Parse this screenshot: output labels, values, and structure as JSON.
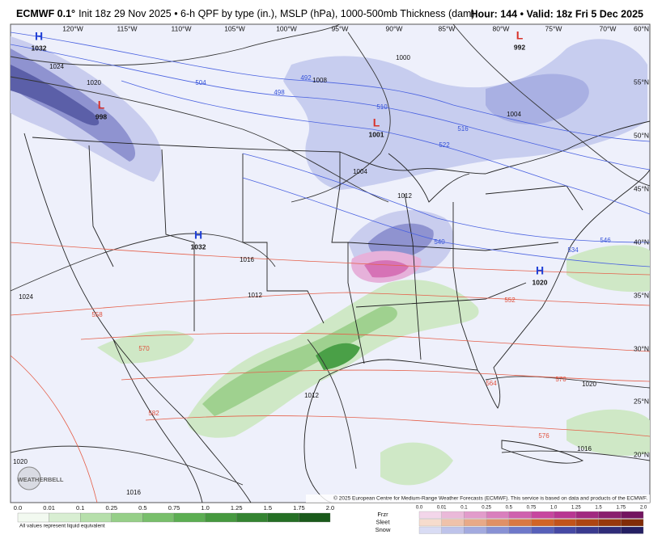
{
  "header": {
    "model": "ECMWF 0.1°",
    "description": "Init 18z 29 Nov 2025 • 6-h QPF by type (in.), MSLP (hPa), 1000-500mb Thickness (dam)",
    "valid": "Hour: 144 • Valid: 18z Fri 5 Dec 2025"
  },
  "map": {
    "longitudes": [
      "120°W",
      "115°W",
      "110°W",
      "105°W",
      "100°W",
      "95°W",
      "90°W",
      "85°W",
      "80°W",
      "75°W",
      "70°W"
    ],
    "latitudes": [
      "60°N",
      "55°N",
      "50°N",
      "45°N",
      "40°N",
      "35°N",
      "30°N",
      "25°N",
      "20°N"
    ],
    "pressure_centers": [
      {
        "symbol": "H",
        "value": "1032"
      },
      {
        "symbol": "L",
        "value": "998"
      },
      {
        "symbol": "L",
        "value": "1001"
      },
      {
        "symbol": "L",
        "value": "992"
      },
      {
        "symbol": "H",
        "value": "1032"
      },
      {
        "symbol": "H",
        "value": "1020"
      }
    ],
    "isobar_labels": [
      "1024",
      "1020",
      "1008",
      "1004",
      "1012",
      "1000",
      "1004",
      "1016",
      "1012",
      "1024",
      "1020",
      "1016",
      "1020",
      "1016",
      "1012"
    ],
    "thickness_labels": [
      "504",
      "492",
      "498",
      "510",
      "516",
      "522",
      "540",
      "546",
      "534",
      "552",
      "564",
      "570",
      "576",
      "558",
      "570",
      "582"
    ],
    "credit": "© 2025 European Centre for Medium-Range Weather Forecasts (ECMWF). This service is based on data and products of the ECMWF.",
    "logo": "WEATHERBELL"
  },
  "legend": {
    "rain_ticks": [
      "0.0",
      "0.01",
      "0.1",
      "0.25",
      "0.5",
      "0.75",
      "1.0",
      "1.25",
      "1.5",
      "1.75",
      "2.0"
    ],
    "note": "All values represent liquid equivalent",
    "types": [
      "Frzr",
      "Sleet",
      "Snow"
    ],
    "type_ticks": [
      "0.0",
      "0.01",
      "0.1",
      "0.25",
      "0.5",
      "0.75",
      "1.0",
      "1.25",
      "1.5",
      "1.75",
      "2.0"
    ]
  }
}
